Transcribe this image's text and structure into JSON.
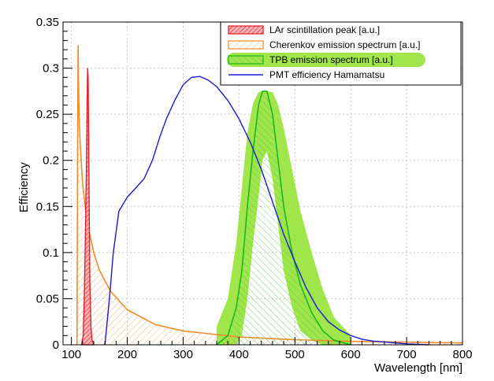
{
  "chart_data": {
    "type": "area",
    "title": "",
    "xlabel": "Wavelength [nm]",
    "ylabel": "Efficiency",
    "xlim": [
      85,
      800
    ],
    "ylim": [
      0,
      0.35
    ],
    "x_ticks": [
      100,
      200,
      300,
      400,
      500,
      600,
      700,
      800
    ],
    "x_tick_labels": [
      "100",
      "200",
      "300",
      "400",
      "500",
      "600",
      "700",
      "800"
    ],
    "y_ticks": [
      0,
      0.05,
      0.1,
      0.15,
      0.2,
      0.25,
      0.3,
      0.35
    ],
    "y_tick_labels": [
      "0",
      "0.05",
      "0.1",
      "0.15",
      "0.2",
      "0.25",
      "0.3",
      "0.35"
    ],
    "grid": true,
    "legend_position": "top-right",
    "series": [
      {
        "name": "LAr scintillation peak [a.u.]",
        "style": "filled-hatched",
        "color": "#e8141e",
        "fill": "#f5a0a4",
        "x": [
          118,
          121,
          123,
          125,
          127,
          128,
          129,
          130,
          131,
          132,
          133,
          135,
          137,
          140
        ],
        "y": [
          0,
          0.01,
          0.05,
          0.12,
          0.2,
          0.26,
          0.3,
          0.29,
          0.22,
          0.14,
          0.07,
          0.02,
          0.005,
          0
        ]
      },
      {
        "name": "Cherenkov emission spectrum [a.u.]",
        "style": "hatched",
        "color": "#f08c28",
        "fill": "#f6c89a",
        "x": [
          110,
          111,
          112,
          113,
          114,
          116,
          120,
          125,
          130,
          140,
          150,
          170,
          200,
          250,
          300,
          400,
          500,
          600,
          700,
          800
        ],
        "y": [
          0,
          0.2,
          0.325,
          0.27,
          0.245,
          0.215,
          0.175,
          0.148,
          0.128,
          0.1,
          0.081,
          0.058,
          0.038,
          0.022,
          0.015,
          0.0085,
          0.0055,
          0.0038,
          0.0028,
          0.0021
        ]
      },
      {
        "name": "TPB emission spectrum [a.u.]",
        "style": "hatched-with-band",
        "color": "#16b41a",
        "fill": "#b8eab8",
        "band_color": "#8fe02a",
        "x": [
          360,
          380,
          395,
          405,
          415,
          425,
          435,
          442,
          450,
          460,
          470,
          480,
          495,
          510,
          530,
          550,
          570,
          600
        ],
        "y": [
          0,
          0.01,
          0.04,
          0.08,
          0.15,
          0.21,
          0.26,
          0.275,
          0.275,
          0.25,
          0.2,
          0.15,
          0.1,
          0.065,
          0.035,
          0.015,
          0.005,
          0
        ],
        "band_upper": [
          0.02,
          0.05,
          0.11,
          0.17,
          0.23,
          0.262,
          0.274,
          0.275,
          0.275,
          0.274,
          0.26,
          0.235,
          0.19,
          0.145,
          0.1,
          0.06,
          0.03,
          0.01
        ],
        "band_lower": [
          0,
          0,
          0,
          0.01,
          0.05,
          0.11,
          0.16,
          0.2,
          0.21,
          0.18,
          0.13,
          0.08,
          0.04,
          0.015,
          0.005,
          0,
          0,
          0
        ]
      },
      {
        "name": "PMT efficiency Hamamatsu",
        "style": "line",
        "color": "#1a1ad4",
        "x": [
          160,
          168,
          175,
          185,
          200,
          215,
          230,
          245,
          258,
          270,
          285,
          300,
          315,
          330,
          345,
          360,
          380,
          400,
          420,
          440,
          460,
          480,
          500,
          520,
          540,
          560,
          580,
          600,
          620,
          640,
          660,
          680,
          700,
          720,
          740
        ],
        "y": [
          0,
          0.05,
          0.1,
          0.145,
          0.16,
          0.17,
          0.18,
          0.2,
          0.225,
          0.245,
          0.265,
          0.282,
          0.29,
          0.291,
          0.287,
          0.28,
          0.265,
          0.245,
          0.22,
          0.19,
          0.155,
          0.12,
          0.09,
          0.062,
          0.04,
          0.025,
          0.016,
          0.01,
          0.006,
          0.004,
          0.003,
          0.002,
          0.001,
          0.0005,
          0
        ]
      }
    ]
  }
}
